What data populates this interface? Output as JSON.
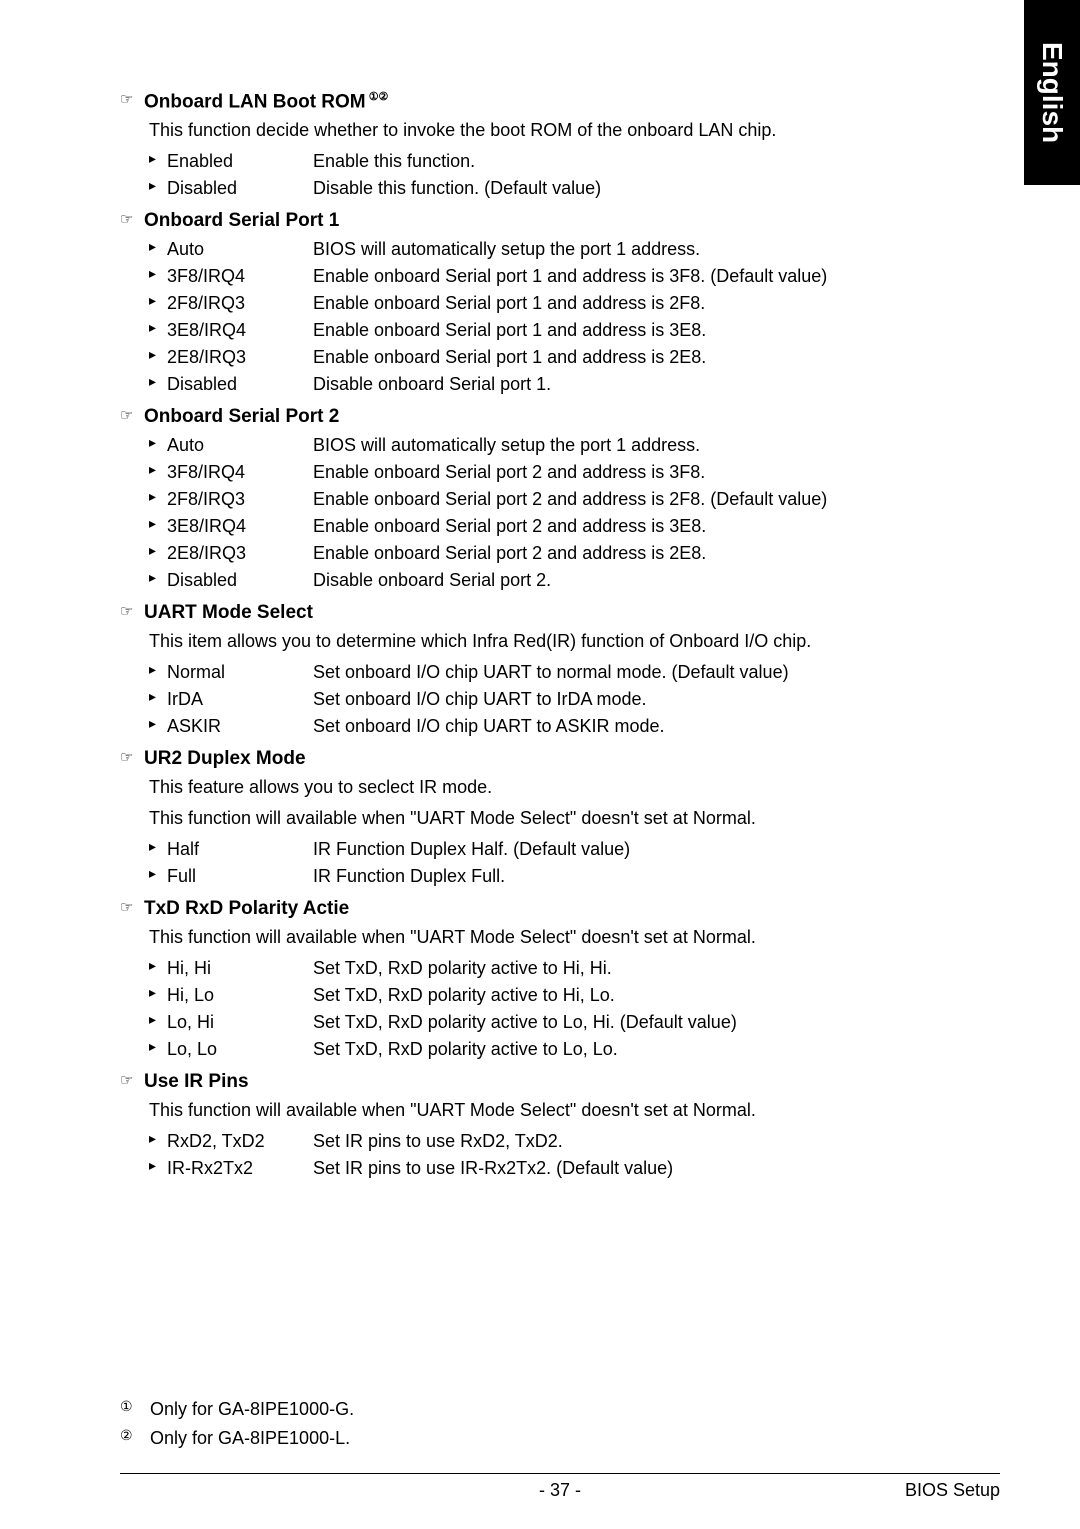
{
  "side_tab": "English",
  "sections": [
    {
      "title": "Onboard LAN Boot ROM",
      "title_suffix": "①②",
      "desc": [
        "This function decide whether to invoke the boot ROM of the onboard LAN chip."
      ],
      "options": [
        {
          "name": "Enabled",
          "desc": "Enable this function."
        },
        {
          "name": "Disabled",
          "desc": "Disable this function. (Default value)"
        }
      ]
    },
    {
      "title": "Onboard Serial Port 1",
      "desc": [],
      "options": [
        {
          "name": "Auto",
          "desc": "BIOS will automatically setup the port 1 address."
        },
        {
          "name": "3F8/IRQ4",
          "desc": "Enable onboard Serial port 1 and address is 3F8. (Default value)"
        },
        {
          "name": "2F8/IRQ3",
          "desc": "Enable onboard Serial port 1 and address is 2F8."
        },
        {
          "name": "3E8/IRQ4",
          "desc": "Enable onboard Serial port 1 and address is 3E8."
        },
        {
          "name": "2E8/IRQ3",
          "desc": "Enable onboard Serial port 1 and address is 2E8."
        },
        {
          "name": "Disabled",
          "desc": "Disable onboard Serial port 1."
        }
      ]
    },
    {
      "title": "Onboard Serial Port 2",
      "desc": [],
      "options": [
        {
          "name": "Auto",
          "desc": "BIOS will automatically setup the port 1 address."
        },
        {
          "name": "3F8/IRQ4",
          "desc": "Enable onboard Serial port 2 and address is 3F8."
        },
        {
          "name": "2F8/IRQ3",
          "desc": "Enable onboard Serial port 2 and address is 2F8. (Default value)"
        },
        {
          "name": "3E8/IRQ4",
          "desc": "Enable onboard Serial port 2 and address is 3E8."
        },
        {
          "name": "2E8/IRQ3",
          "desc": "Enable onboard Serial port 2 and address is 2E8."
        },
        {
          "name": "Disabled",
          "desc": "Disable onboard Serial port 2."
        }
      ]
    },
    {
      "title": "UART Mode Select",
      "desc": [
        "This item allows you to determine which Infra Red(IR) function of Onboard I/O chip."
      ],
      "options": [
        {
          "name": "Normal",
          "desc": "Set onboard I/O chip UART to normal mode. (Default value)"
        },
        {
          "name": "IrDA",
          "desc": "Set onboard I/O chip UART to IrDA mode."
        },
        {
          "name": "ASKIR",
          "desc": "Set onboard I/O chip UART to ASKIR mode."
        }
      ]
    },
    {
      "title": "UR2 Duplex Mode",
      "desc": [
        "This feature allows you to seclect IR mode.",
        "This function will available when \"UART Mode Select\" doesn't set at Normal."
      ],
      "options": [
        {
          "name": "Half",
          "desc": "IR Function Duplex Half. (Default value)"
        },
        {
          "name": "Full",
          "desc": "IR Function Duplex Full."
        }
      ]
    },
    {
      "title": "TxD RxD Polarity Actie",
      "desc": [
        "This function will available when \"UART Mode Select\" doesn't set at Normal."
      ],
      "options": [
        {
          "name": "Hi, Hi",
          "desc": "Set TxD, RxD polarity active to Hi, Hi."
        },
        {
          "name": "Hi, Lo",
          "desc": "Set TxD, RxD polarity active to Hi, Lo."
        },
        {
          "name": "Lo, Hi",
          "desc": "Set TxD, RxD polarity active to Lo, Hi. (Default value)"
        },
        {
          "name": "Lo, Lo",
          "desc": "Set TxD, RxD polarity active to Lo, Lo."
        }
      ]
    },
    {
      "title": "Use IR Pins",
      "desc": [
        "This function will available when \"UART Mode Select\" doesn't set at Normal."
      ],
      "options": [
        {
          "name": "RxD2, TxD2",
          "desc": "Set IR pins to use RxD2, TxD2."
        },
        {
          "name": "IR-Rx2Tx2",
          "desc": "Set IR pins to use IR-Rx2Tx2. (Default value)"
        }
      ]
    }
  ],
  "footnotes": [
    {
      "num": "①",
      "text": "Only for GA-8IPE1000-G."
    },
    {
      "num": "②",
      "text": "Only for GA-8IPE1000-L."
    }
  ],
  "footer": {
    "page": "- 37 -",
    "right": "BIOS Setup"
  },
  "icons": {
    "hand": "☞",
    "bullet": "▸"
  },
  "colors": {
    "text": "#000000",
    "background": "#ffffff",
    "tab_bg": "#000000",
    "tab_text": "#ffffff"
  },
  "typography": {
    "body_size": 18,
    "title_size": 19,
    "side_tab_size": 28
  }
}
